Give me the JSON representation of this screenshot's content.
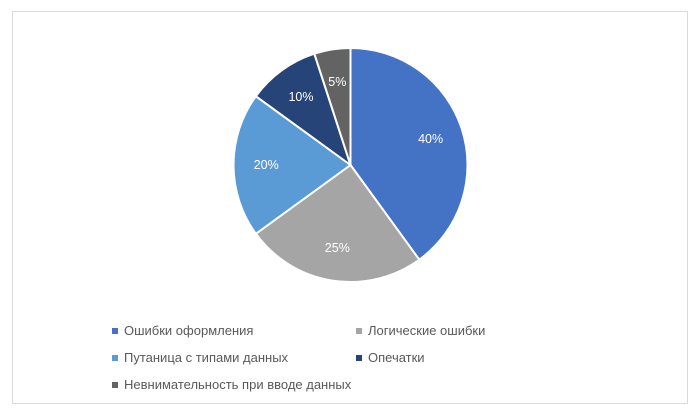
{
  "chart_data": {
    "type": "pie",
    "title": "",
    "categories": [
      "Ошибки оформления",
      "Логические ошибки",
      "Путаница с типами данных",
      "Опечатки",
      "Невнимательность при вводе данных"
    ],
    "values": [
      40,
      25,
      20,
      10,
      5
    ],
    "labels": [
      "40%",
      "25%",
      "20%",
      "10%",
      "5%"
    ],
    "colors": [
      "#4472C4",
      "#A5A5A5",
      "#5B9BD5",
      "#264478",
      "#636363"
    ],
    "start_angle_deg": 0,
    "direction": "clockwise",
    "legend_position": "bottom"
  },
  "legend": {
    "items": [
      {
        "label": "Ошибки оформления",
        "color": "#4472C4"
      },
      {
        "label": "Логические ошибки",
        "color": "#A5A5A5"
      },
      {
        "label": "Путаница с типами данных",
        "color": "#5B9BD5"
      },
      {
        "label": "Опечатки",
        "color": "#264478"
      },
      {
        "label": "Невнимательность при вводе данных",
        "color": "#636363"
      }
    ]
  }
}
